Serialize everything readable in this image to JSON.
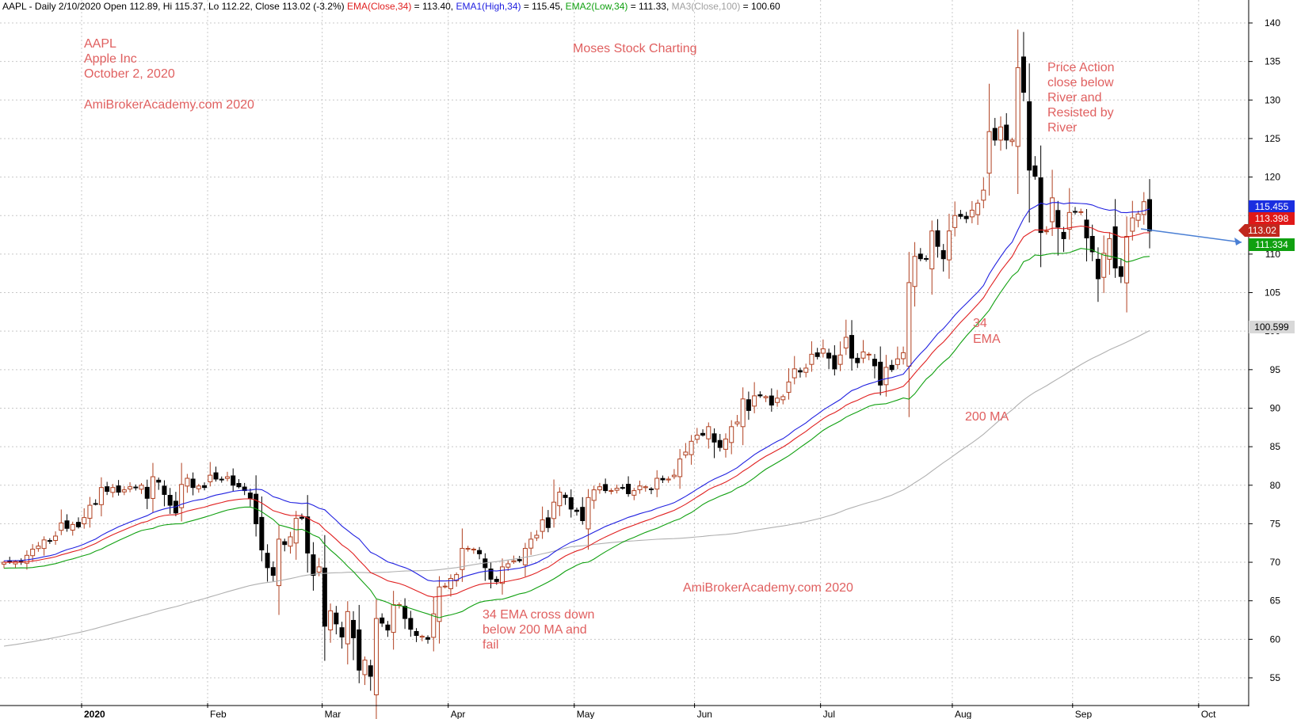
{
  "header": {
    "parts": [
      {
        "text": "AAPL - Daily 2/10/2020 Open 112.89, Hi 115.37, Lo 112.22, Close 113.02 (-3.2%) ",
        "color": "#000000"
      },
      {
        "text": "EMA(Close,34)",
        "color": "#e02020"
      },
      {
        "text": " = 113.40, ",
        "color": "#000000"
      },
      {
        "text": "EMA1(High,34)",
        "color": "#2020e0"
      },
      {
        "text": " = 115.45, ",
        "color": "#000000"
      },
      {
        "text": "EMA2(Low,34)",
        "color": "#10a010"
      },
      {
        "text": " = 111.33, ",
        "color": "#000000"
      },
      {
        "text": "MA3(Close,100)",
        "color": "#a0a0a0"
      },
      {
        "text": " = 100.60",
        "color": "#000000"
      }
    ]
  },
  "annotations": {
    "ticker": "AAPL",
    "company": "Apple Inc",
    "date": "October 2, 2020",
    "site_top": "AmiBrokerAcademy.com  2020",
    "brand": "Moses Stock Charting",
    "price_action": [
      "Price Action",
      "close below",
      "River and",
      "Resisted by",
      "River"
    ],
    "ema_label": [
      "34",
      "EMA"
    ],
    "ma_label": "200 MA",
    "site_bottom": "AmiBrokerAcademy.com  2020",
    "cross_note": [
      "34 EMA cross down",
      "below 200 MA and",
      "fail"
    ]
  },
  "colors": {
    "bull": "#b04020",
    "bear": "#000000",
    "ema_close": "#e02020",
    "ema_high": "#2020e0",
    "ema_low": "#10a010",
    "ma": "#b0b0b0",
    "note": "#e06060",
    "arrow": "#4a7fd4"
  },
  "chart_data": {
    "type": "candlestick",
    "title": "AAPL - Daily",
    "ylim": [
      51.3,
      142.6
    ],
    "y_ticks": [
      55,
      60,
      65,
      70,
      75,
      80,
      85,
      90,
      95,
      100,
      105,
      110,
      115,
      120,
      125,
      130,
      135,
      140
    ],
    "x_axis_start": "2019-12-16",
    "x_ticks": [
      {
        "label": "2020",
        "date": "2020-01-02"
      },
      {
        "label": "Feb",
        "date": "2020-02-03"
      },
      {
        "label": "Mar",
        "date": "2020-03-02"
      },
      {
        "label": "Apr",
        "date": "2020-04-01"
      },
      {
        "label": "May",
        "date": "2020-05-01"
      },
      {
        "label": "Jun",
        "date": "2020-06-01"
      },
      {
        "label": "Jul",
        "date": "2020-07-01"
      },
      {
        "label": "Aug",
        "date": "2020-08-03"
      },
      {
        "label": "Sep",
        "date": "2020-09-01"
      },
      {
        "label": "Oct",
        "date": "2020-10-01"
      }
    ],
    "last_values": [
      {
        "name": "EMA(High,34)",
        "value": "115.455",
        "bg": "#1a2ee0"
      },
      {
        "name": "EMA(Close,34)",
        "value": "113.398",
        "bg": "#e01818"
      },
      {
        "name": "Close",
        "value": "113.02",
        "bg": "#c0281e"
      },
      {
        "name": "EMA(Low,34)",
        "value": "111.334",
        "bg": "#10a010"
      },
      {
        "name": "MA(Close,100)",
        "value": "100.599",
        "bg": "#d8d8d8"
      }
    ],
    "closes": [
      70.0,
      70.0,
      70.1,
      70.0,
      70.9,
      71.7,
      72.1,
      72.9,
      72.8,
      73.4,
      75.1,
      74.4,
      74.9,
      74.6,
      75.8,
      77.4,
      77.6,
      79.7,
      79.2,
      79.7,
      79.1,
      79.4,
      79.8,
      79.7,
      80.0,
      78.3,
      81.1,
      80.4,
      78.8,
      77.4,
      76.4,
      80.1,
      80.9,
      79.7,
      79.9,
      79.7,
      81.3,
      80.8,
      80.7,
      81.1,
      80.0,
      79.8,
      79.3,
      78.3,
      75.0,
      71.6,
      69.3,
      68.3,
      73.0,
      72.3,
      73.3,
      75.7,
      75.7,
      71.2,
      68.3,
      69.4,
      61.7,
      63.7,
      62.0,
      60.3,
      63.6,
      60.2,
      56.0,
      57.3,
      55.2,
      62.7,
      62.1,
      61.2,
      64.5,
      64.5,
      62.7,
      61.3,
      60.5,
      60.4,
      60.0,
      63.3,
      66.8,
      66.9,
      67.9,
      68.4,
      71.8,
      71.8,
      71.7,
      71.1,
      69.3,
      67.8,
      67.5,
      69.4,
      69.8,
      70.2,
      70.2,
      71.8,
      73.0,
      73.5,
      75.5,
      74.5,
      77.8,
      79.1,
      78.4,
      76.9,
      76.6,
      75.4,
      78.4,
      79.4,
      79.8,
      79.3,
      79.3,
      79.6,
      79.7,
      78.9,
      79.3,
      79.9,
      79.8,
      79.5,
      80.9,
      80.7,
      80.8,
      81.3,
      83.4,
      84.3,
      85.7,
      86.5,
      86.5,
      87.6,
      85.6,
      84.9,
      86.0,
      87.6,
      88.2,
      91.2,
      89.7,
      91.6,
      91.6,
      91.5,
      90.4,
      91.3,
      91.5,
      93.4,
      95.1,
      94.7,
      95.2,
      97.0,
      96.7,
      97.7,
      96.5,
      95.1,
      96.9,
      99.2,
      96.5,
      95.9,
      97.3,
      97.0,
      95.5,
      93.0,
      95.3,
      95.0,
      96.4,
      97.2,
      106.3,
      109.7,
      109.4,
      109.4,
      113.0,
      111.0,
      109.4,
      113.0,
      115.0,
      114.9,
      114.6,
      115.7,
      116.6,
      118.3,
      125.9,
      124.8,
      126.5,
      124.8,
      124.8,
      134.2,
      131.0,
      120.9,
      120.1,
      112.8,
      113.0,
      117.3,
      113.5,
      112.0,
      115.4,
      115.5,
      115.5,
      112.1,
      110.3,
      106.8,
      110.1,
      112.0,
      108.2,
      107.1,
      112.3,
      114.7,
      115.2,
      116.8,
      113.0
    ]
  }
}
